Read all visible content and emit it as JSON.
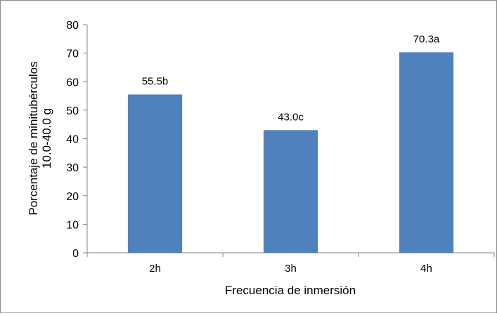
{
  "chart_data": {
    "type": "bar",
    "categories": [
      "2h",
      "3h",
      "4h"
    ],
    "values": [
      55.5,
      43.0,
      70.3
    ],
    "data_labels": [
      "55.5b",
      "43.0c",
      "70.3a"
    ],
    "xlabel": "Frecuencia de inmersión",
    "ylabel_lines": [
      "Porcentaje de minitubérculos",
      "10.0-40.0 g"
    ],
    "ylim": [
      0,
      80
    ],
    "yticks": [
      0,
      10,
      20,
      30,
      40,
      50,
      60,
      70,
      80
    ],
    "grid": false,
    "legend": "none",
    "bar_color": "#4f81bd"
  }
}
